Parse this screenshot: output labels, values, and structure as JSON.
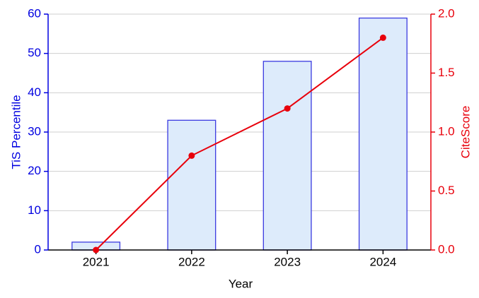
{
  "chart_data": {
    "type": "bar-line",
    "x_label": "Year",
    "y_label": "TiS Percentile",
    "y2_label": "CiteScore",
    "categories": [
      "2021",
      "2022",
      "2023",
      "2024"
    ],
    "series": [
      {
        "type": "bar",
        "color": "#3a3ae0",
        "fill": "#ddebfb",
        "values": [
          2,
          33,
          48,
          59
        ]
      },
      {
        "type": "line",
        "axis": "y2",
        "color": "#e8000b",
        "values": [
          0.0,
          0.8,
          1.2,
          1.8
        ]
      }
    ],
    "ylim": [
      0,
      60
    ],
    "yticks": [
      0,
      10,
      20,
      30,
      40,
      50,
      60
    ],
    "y2lim": [
      0,
      2
    ],
    "y2ticks": [
      {
        "value": 0,
        "label": "0.0"
      },
      {
        "value": 0.5,
        "label": "0.5"
      },
      {
        "value": 1,
        "label": "1.0"
      },
      {
        "value": 1.5,
        "label": "1.5"
      },
      {
        "value": 2,
        "label": "2.0"
      }
    ],
    "grid": true,
    "y_color": "#0000e0",
    "y2_color": "#e8000b"
  }
}
